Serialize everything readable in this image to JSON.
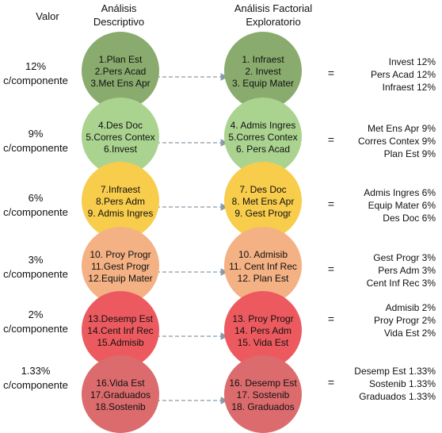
{
  "headers": {
    "valor": "Valor",
    "descriptivo": [
      "Análisis",
      "Descriptivo"
    ],
    "factorial": [
      "Análisis Factorial",
      "Exploratorio"
    ]
  },
  "rows": [
    {
      "valor": [
        "12%",
        "c/componente"
      ],
      "color": "#8aab6e",
      "descriptivo": [
        "1.Plan Est",
        "2.Pers Acad",
        "3.Met Ens Apr"
      ],
      "factorial": [
        "1. Infraest",
        "2. Invest",
        "3. Equip Mater"
      ],
      "equals": "=",
      "resultado": [
        "Invest 12%",
        "Pers Acad 12%",
        "Infraest 12%"
      ]
    },
    {
      "valor": [
        "9%",
        "c/componente"
      ],
      "color": "#aad38f",
      "descriptivo": [
        "4.Des Doc",
        "5.Corres Contex",
        "6.Invest"
      ],
      "factorial": [
        "4. Admis Ingres",
        "5.Corres Contex",
        "6. Pers Acad"
      ],
      "equals": "=",
      "resultado": [
        "Met Ens Apr 9%",
        "Corres Contex 9%",
        "Plan Est 9%"
      ]
    },
    {
      "valor": [
        "6%",
        "c/componente"
      ],
      "color": "#f8cd4c",
      "descriptivo": [
        "7.Infraest",
        "8.Pers Adm",
        "9. Admis Ingres"
      ],
      "factorial": [
        "7. Des Doc",
        "8. Met Ens Apr",
        "9. Gest Progr"
      ],
      "equals": "=",
      "resultado": [
        "Admis Ingres 6%",
        "Equip Mater 6%",
        "Des Doc 6%"
      ]
    },
    {
      "valor": [
        "3%",
        "c/componente"
      ],
      "color": "#f3b184",
      "descriptivo": [
        "10. Proy Progr",
        "11.Gest Progr",
        "12.Equip Mater"
      ],
      "factorial": [
        "10. Admisib",
        "11. Cent Inf Rec",
        "12. Plan Est"
      ],
      "equals": "=",
      "resultado": [
        "Gest Progr 3%",
        "Pers Adm 3%",
        "Cent Inf Rec 3%"
      ]
    },
    {
      "valor": [
        "2%",
        "c/componente"
      ],
      "color": "#ec5a5f",
      "descriptivo": [
        "13.Desemp Est",
        "14.Cent Inf Rec",
        "15.Admisib"
      ],
      "factorial": [
        "13. Proy Progr",
        "14. Pers Adm",
        "15. Vida Est"
      ],
      "equals": "=",
      "resultado": [
        "Admisib 2%",
        "Proy Progr 2%",
        "Vida Est 2%"
      ]
    },
    {
      "valor": [
        "1.33%",
        "c/componente"
      ],
      "color": "#dc6b6d",
      "descriptivo": [
        "16.Vida Est",
        "17.Graduados",
        "18.Sostenib"
      ],
      "factorial": [
        "16. Desemp Est",
        "17. Sostenib",
        "18. Graduados"
      ],
      "equals": "=",
      "resultado": [
        "Desemp Est 1.33%",
        "Sostenib 1.33%",
        "Graduados 1.33%"
      ]
    }
  ]
}
